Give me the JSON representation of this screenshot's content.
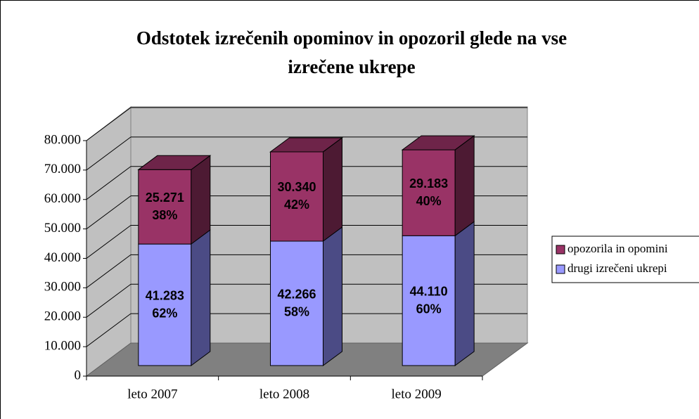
{
  "chart_data": {
    "type": "bar3d_stacked",
    "title": "Odstotek izrečenih opominov in opozoril glede na vse izrečene ukrepe",
    "categories": [
      "leto 2007",
      "leto 2008",
      "leto 2009"
    ],
    "series": [
      {
        "name": "drugi izrečeni ukrepi",
        "color": "#9999ff",
        "side_color": "#4b4b85",
        "top_color": "#7777cc",
        "values": [
          41283,
          42266,
          44110
        ],
        "value_labels": [
          "41.283",
          "42.266",
          "44.110"
        ],
        "percent_labels": [
          "62%",
          "58%",
          "60%"
        ]
      },
      {
        "name": "opozorila in opomini",
        "color": "#993366",
        "side_color": "#4d1a33",
        "top_color": "#6e2449",
        "values": [
          25271,
          30340,
          29183
        ],
        "value_labels": [
          "25.271",
          "30.340",
          "29.183"
        ],
        "percent_labels": [
          "38%",
          "42%",
          "40%"
        ]
      }
    ],
    "ylim": [
      0,
      80000
    ],
    "yticks": [
      0,
      {
        "value": 10000,
        "label": "10.000"
      },
      {
        "value": 20000,
        "label": "20.000"
      },
      {
        "value": 30000,
        "label": "30.000"
      },
      {
        "value": 40000,
        "label": "40.000"
      },
      {
        "value": 50000,
        "label": "50.000"
      },
      {
        "value": 60000,
        "label": "60.000"
      },
      {
        "value": 70000,
        "label": "70.000"
      },
      {
        "value": 80000,
        "label": "80.000"
      }
    ],
    "grid": true,
    "legend": "right"
  }
}
